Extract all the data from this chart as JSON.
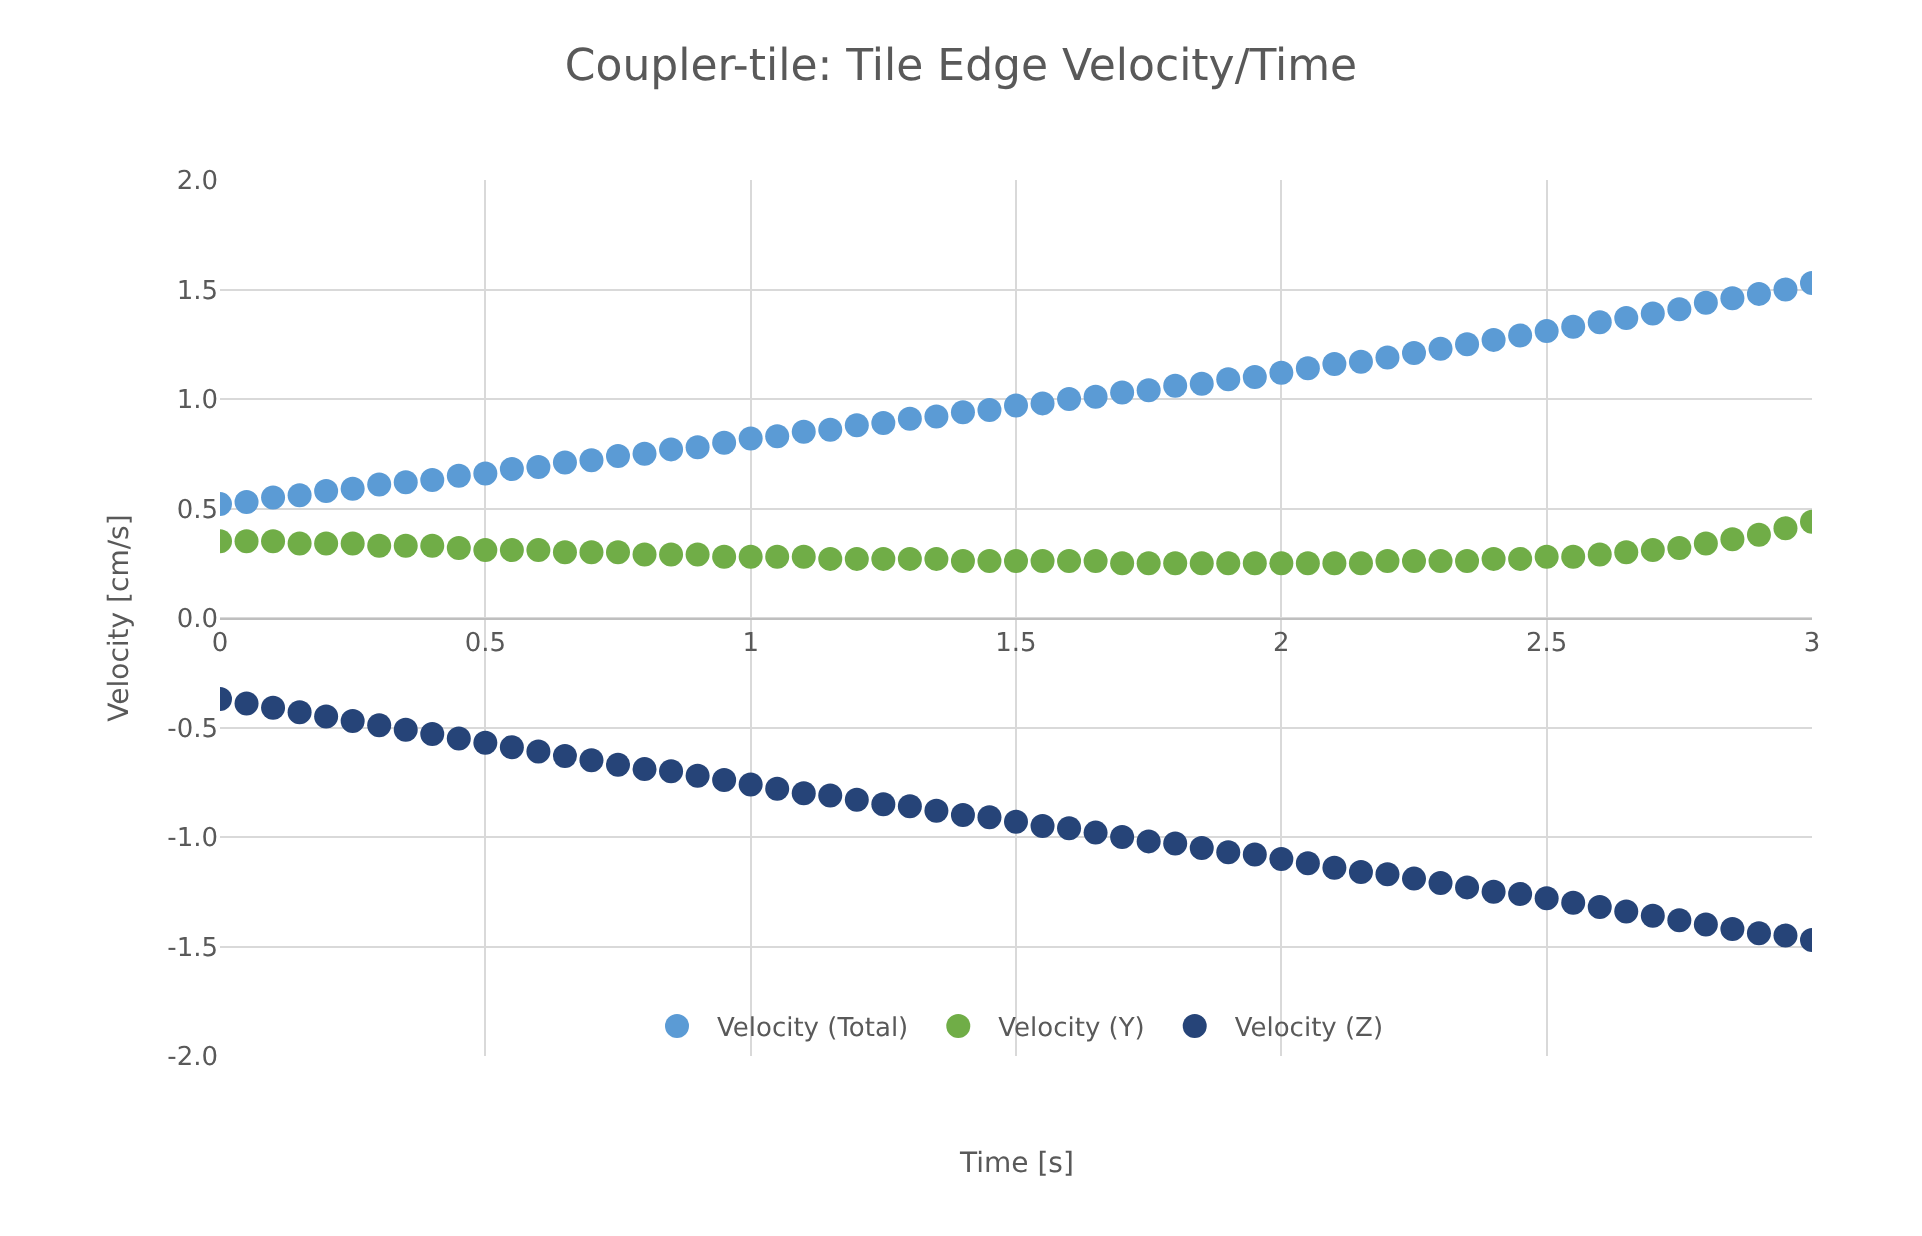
{
  "chart_data": {
    "type": "scatter",
    "title": "Coupler-tile: Tile Edge Velocity/Time",
    "xlabel": "Time [s]",
    "ylabel": "Velocity [cm/s]",
    "x": [
      0,
      0.05,
      0.1,
      0.15,
      0.2,
      0.25,
      0.3,
      0.35,
      0.4,
      0.45,
      0.5,
      0.55,
      0.6,
      0.65,
      0.7,
      0.75,
      0.8,
      0.85,
      0.9,
      0.95,
      1,
      1.05,
      1.1,
      1.15,
      1.2,
      1.25,
      1.3,
      1.35,
      1.4,
      1.45,
      1.5,
      1.55,
      1.6,
      1.65,
      1.7,
      1.75,
      1.8,
      1.85,
      1.9,
      1.95,
      2,
      2.05,
      2.1,
      2.15,
      2.2,
      2.25,
      2.3,
      2.35,
      2.4,
      2.45,
      2.5,
      2.55,
      2.6,
      2.65,
      2.7,
      2.75,
      2.8,
      2.85,
      2.9,
      2.95,
      3
    ],
    "series": [
      {
        "name": "Velocity (Total)",
        "color": "#5b9bd5",
        "values": [
          0.52,
          0.53,
          0.55,
          0.56,
          0.58,
          0.59,
          0.61,
          0.62,
          0.63,
          0.65,
          0.66,
          0.68,
          0.69,
          0.71,
          0.72,
          0.74,
          0.75,
          0.77,
          0.78,
          0.8,
          0.82,
          0.83,
          0.85,
          0.86,
          0.88,
          0.89,
          0.91,
          0.92,
          0.94,
          0.95,
          0.97,
          0.98,
          1.0,
          1.01,
          1.03,
          1.04,
          1.06,
          1.07,
          1.09,
          1.1,
          1.12,
          1.14,
          1.16,
          1.17,
          1.19,
          1.21,
          1.23,
          1.25,
          1.27,
          1.29,
          1.31,
          1.33,
          1.35,
          1.37,
          1.39,
          1.41,
          1.44,
          1.46,
          1.48,
          1.5,
          1.53
        ]
      },
      {
        "name": "Velocity (Y)",
        "color": "#70ad47",
        "values": [
          0.35,
          0.35,
          0.35,
          0.34,
          0.34,
          0.34,
          0.33,
          0.33,
          0.33,
          0.32,
          0.31,
          0.31,
          0.31,
          0.3,
          0.3,
          0.3,
          0.29,
          0.29,
          0.29,
          0.28,
          0.28,
          0.28,
          0.28,
          0.27,
          0.27,
          0.27,
          0.27,
          0.27,
          0.26,
          0.26,
          0.26,
          0.26,
          0.26,
          0.26,
          0.25,
          0.25,
          0.25,
          0.25,
          0.25,
          0.25,
          0.25,
          0.25,
          0.25,
          0.25,
          0.26,
          0.26,
          0.26,
          0.26,
          0.27,
          0.27,
          0.28,
          0.28,
          0.29,
          0.3,
          0.31,
          0.32,
          0.34,
          0.36,
          0.38,
          0.41,
          0.44
        ]
      },
      {
        "name": "Velocity (Z)",
        "color": "#264478",
        "values": [
          -0.37,
          -0.39,
          -0.41,
          -0.43,
          -0.45,
          -0.47,
          -0.49,
          -0.51,
          -0.53,
          -0.55,
          -0.57,
          -0.59,
          -0.61,
          -0.63,
          -0.65,
          -0.67,
          -0.69,
          -0.7,
          -0.72,
          -0.74,
          -0.76,
          -0.78,
          -0.8,
          -0.81,
          -0.83,
          -0.85,
          -0.86,
          -0.88,
          -0.9,
          -0.91,
          -0.93,
          -0.95,
          -0.96,
          -0.98,
          -1.0,
          -1.02,
          -1.03,
          -1.05,
          -1.07,
          -1.08,
          -1.1,
          -1.12,
          -1.14,
          -1.16,
          -1.17,
          -1.19,
          -1.21,
          -1.23,
          -1.25,
          -1.26,
          -1.28,
          -1.3,
          -1.32,
          -1.34,
          -1.36,
          -1.38,
          -1.4,
          -1.42,
          -1.44,
          -1.45,
          -1.47
        ]
      }
    ],
    "xlim": [
      0,
      3
    ],
    "xticks": [
      0,
      0.5,
      1,
      1.5,
      2,
      2.5,
      3
    ],
    "ylim": [
      -2,
      2
    ],
    "yticks": [
      {
        "value": -2,
        "label": "-2.0"
      },
      {
        "value": -1.5,
        "label": "-1.5"
      },
      {
        "value": -1,
        "label": "-1.0"
      },
      {
        "value": -0.5,
        "label": "-0.5"
      },
      {
        "value": 0,
        "label": "0.0"
      },
      {
        "value": 0.5,
        "label": "0.5"
      },
      {
        "value": 1,
        "label": "1.0"
      },
      {
        "value": 1.5,
        "label": "1.5"
      },
      {
        "value": 2,
        "label": "2.0"
      }
    ],
    "grid": true,
    "legend": "bottom",
    "marker": "circle"
  }
}
